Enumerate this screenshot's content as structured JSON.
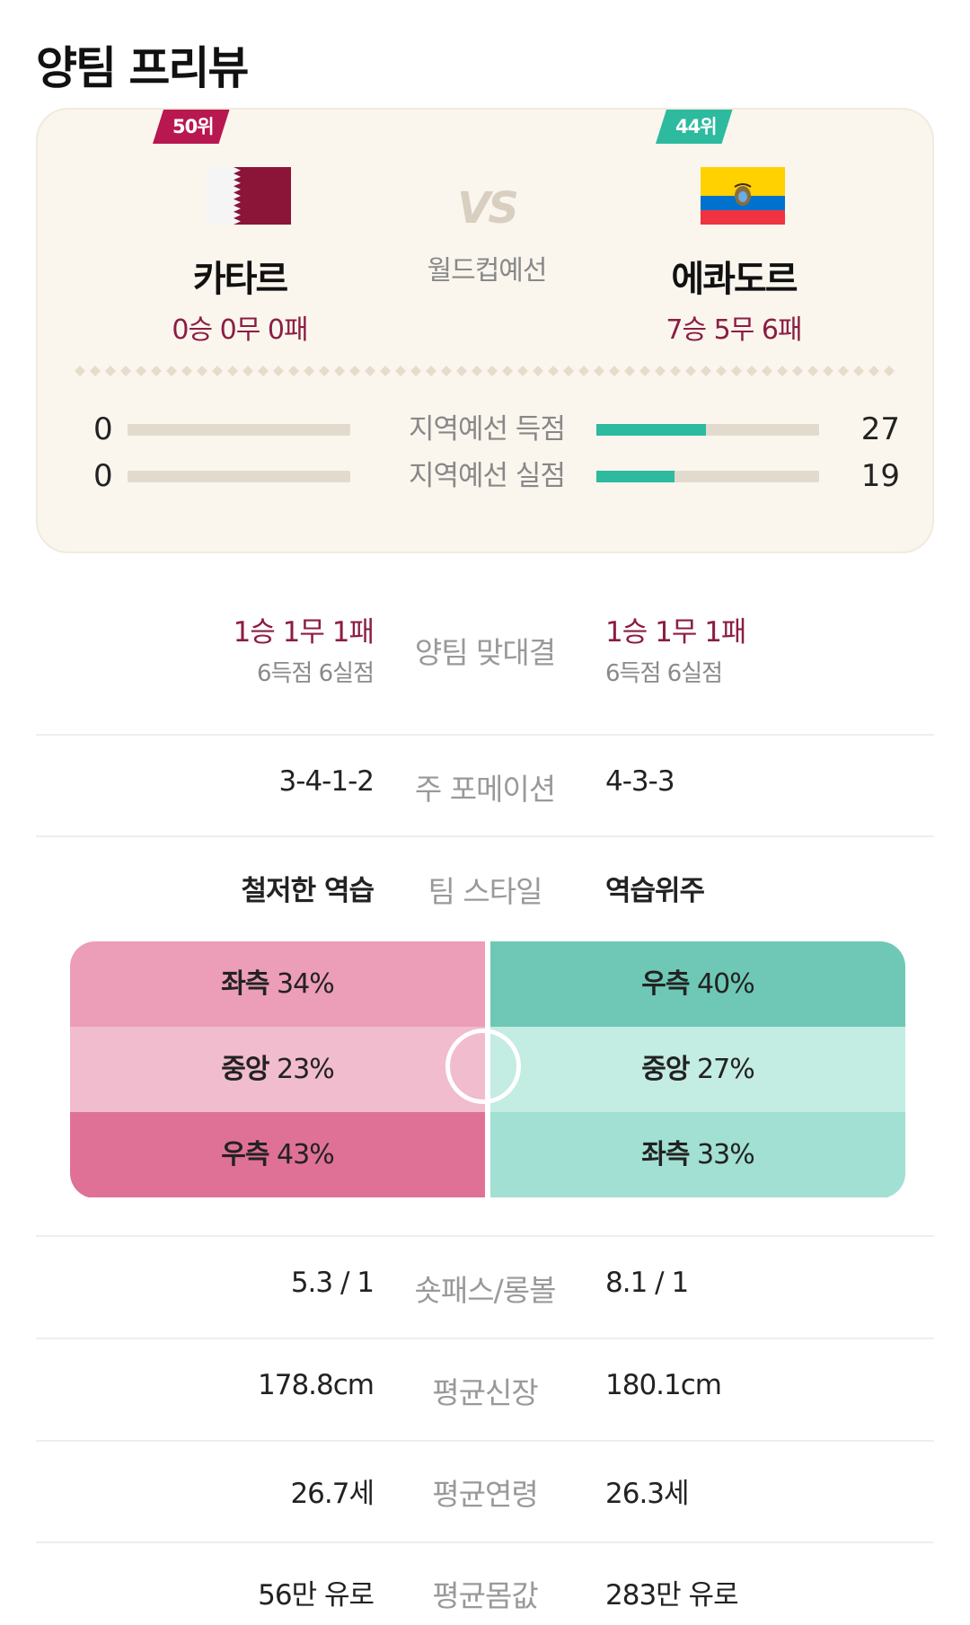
{
  "page_title": "양팀 프리뷰",
  "summary": {
    "home": {
      "name": "카타르",
      "rank": "50위",
      "record": "0승 0무 0패"
    },
    "away": {
      "name": "에콰도르",
      "rank": "44위",
      "record": "7승 5무 6패"
    },
    "vs": "VS",
    "competition": "월드컵예선",
    "stats": [
      {
        "label": "지역예선 득점",
        "home": "0",
        "away": "27",
        "home_ratio": 0,
        "away_ratio": 0.49
      },
      {
        "label": "지역예선 실점",
        "home": "0",
        "away": "19",
        "home_ratio": 0,
        "away_ratio": 0.35
      }
    ]
  },
  "head_to_head": {
    "label": "양팀 맞대결",
    "home": {
      "record": "1승 1무 1패",
      "goals": "6득점 6실점"
    },
    "away": {
      "record": "1승 1무 1패",
      "goals": "6득점 6실점"
    }
  },
  "formation": {
    "label": "주 포메이션",
    "home": "3-4-1-2",
    "away": "4-3-3"
  },
  "team_style": {
    "label": "팀 스타일",
    "home": "철저한 역습",
    "away": "역습위주"
  },
  "attack_direction": {
    "home": [
      {
        "side": "좌측",
        "value": "34%",
        "color": "#ec9db8"
      },
      {
        "side": "중앙",
        "value": "23%",
        "color": "#f1bccd"
      },
      {
        "side": "우측",
        "value": "43%",
        "color": "#e07196"
      }
    ],
    "away": [
      {
        "side": "우측",
        "value": "40%",
        "color": "#6ec8b5"
      },
      {
        "side": "중앙",
        "value": "27%",
        "color": "#c3ece2"
      },
      {
        "side": "좌측",
        "value": "33%",
        "color": "#a1e0d2"
      }
    ]
  },
  "rows": [
    {
      "label": "숏패스/롱볼",
      "home": "5.3 / 1",
      "away": "8.1 / 1"
    },
    {
      "label": "평균신장",
      "home": "178.8cm",
      "away": "180.1cm"
    },
    {
      "label": "평균연령",
      "home": "26.7세",
      "away": "26.3세"
    },
    {
      "label": "평균몸값",
      "home": "56만 유로",
      "away": "283만 유로"
    }
  ],
  "colors": {
    "accent_home": "#8c1d43",
    "badge_home": "#b8174f",
    "accent_away": "#2dba9f"
  }
}
